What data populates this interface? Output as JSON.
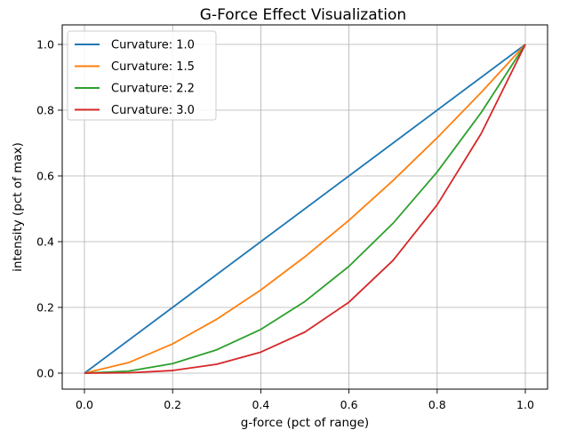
{
  "chart_data": {
    "type": "line",
    "title": "G-Force Effect Visualization",
    "xlabel": "g-force (pct of range)",
    "ylabel": "intensity (pct of max)",
    "xlim": [
      0.0,
      1.0
    ],
    "ylim": [
      0.0,
      1.0
    ],
    "xticks": [
      "0.0",
      "0.2",
      "0.4",
      "0.6",
      "0.8",
      "1.0"
    ],
    "yticks": [
      "0.0",
      "0.2",
      "0.4",
      "0.6",
      "0.8",
      "1.0"
    ],
    "grid": true,
    "legend_position": "upper-left",
    "series": [
      {
        "name": "Curvature: 1.0",
        "color": "#1f77b4",
        "x": [
          0.0,
          0.1,
          0.2,
          0.3,
          0.4,
          0.5,
          0.6,
          0.7,
          0.8,
          0.9,
          1.0
        ],
        "y": [
          0.0,
          0.1,
          0.2,
          0.3,
          0.4,
          0.5,
          0.6,
          0.7,
          0.8,
          0.9,
          1.0
        ]
      },
      {
        "name": "Curvature: 1.5",
        "color": "#ff7f0e",
        "x": [
          0.0,
          0.1,
          0.2,
          0.3,
          0.4,
          0.5,
          0.6,
          0.7,
          0.8,
          0.9,
          1.0
        ],
        "y": [
          0.0,
          0.032,
          0.089,
          0.164,
          0.253,
          0.354,
          0.465,
          0.586,
          0.716,
          0.854,
          1.0
        ]
      },
      {
        "name": "Curvature: 2.2",
        "color": "#2ca02c",
        "x": [
          0.0,
          0.1,
          0.2,
          0.3,
          0.4,
          0.5,
          0.6,
          0.7,
          0.8,
          0.9,
          1.0
        ],
        "y": [
          0.0,
          0.006,
          0.029,
          0.071,
          0.133,
          0.218,
          0.325,
          0.456,
          0.612,
          0.793,
          1.0
        ]
      },
      {
        "name": "Curvature: 3.0",
        "color": "#d62728",
        "x": [
          0.0,
          0.1,
          0.2,
          0.3,
          0.4,
          0.5,
          0.6,
          0.7,
          0.8,
          0.9,
          1.0
        ],
        "y": [
          0.0,
          0.001,
          0.008,
          0.027,
          0.064,
          0.125,
          0.216,
          0.343,
          0.512,
          0.729,
          1.0
        ]
      }
    ]
  }
}
